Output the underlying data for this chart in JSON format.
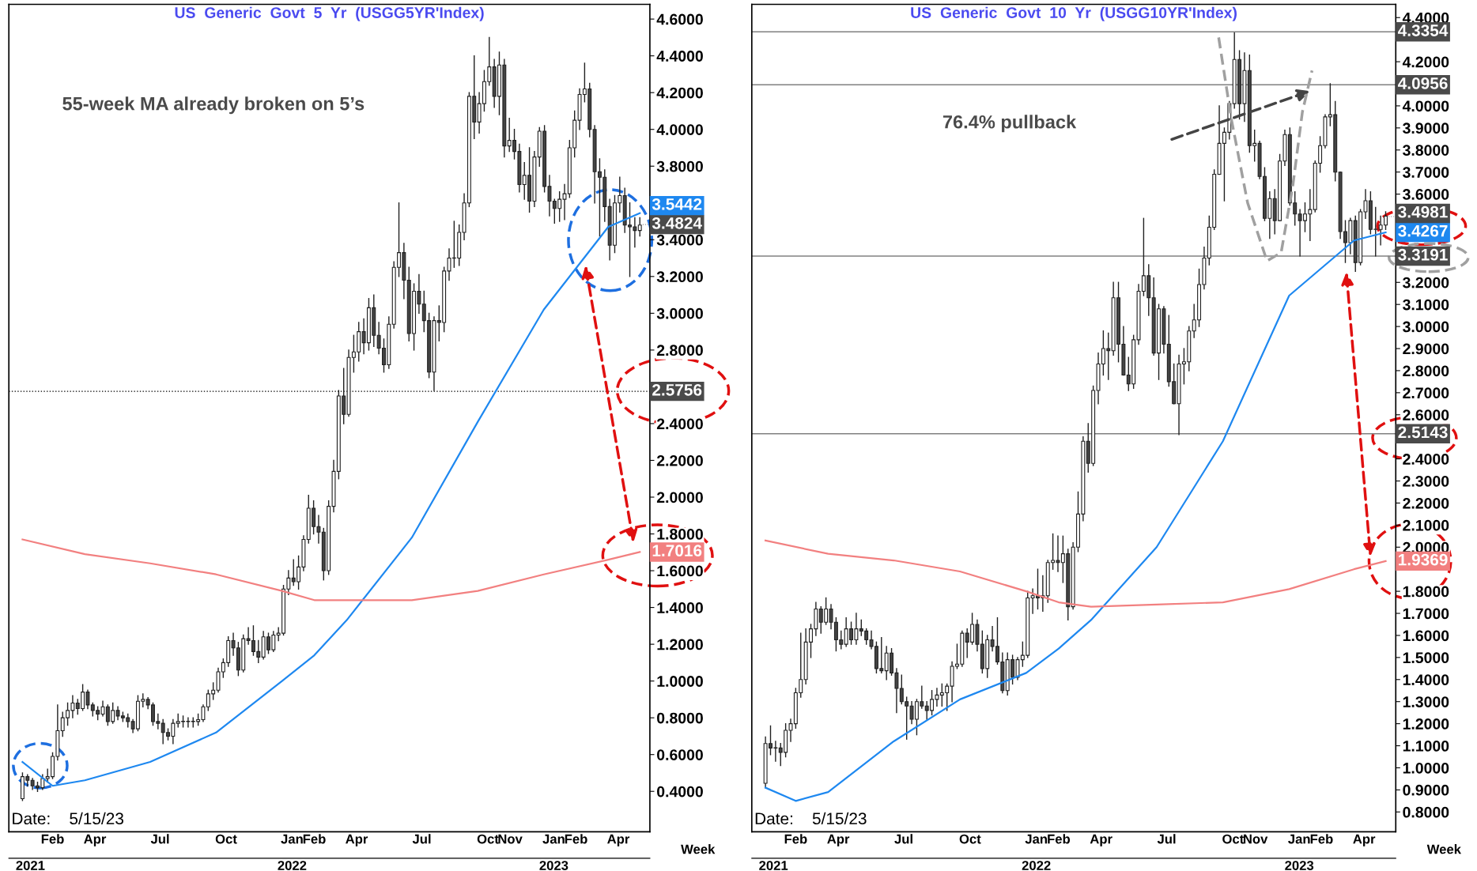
{
  "chart_data": [
    {
      "type": "candlestick",
      "title": "US  Generic  Govt  5  Yr  (USGG5YR'Index)",
      "xlabel": "Week",
      "x": [
        "2021-01-04",
        "2021-01-11",
        "2021-01-18",
        "2021-01-25",
        "2021-02-01",
        "2021-02-08",
        "2021-02-15",
        "2021-02-22",
        "2021-03-01",
        "2021-03-08",
        "2021-03-15",
        "2021-03-22",
        "2021-03-29",
        "2021-04-05",
        "2021-04-12",
        "2021-04-19",
        "2021-04-26",
        "2021-05-03",
        "2021-05-10",
        "2021-05-17",
        "2021-05-24",
        "2021-05-31",
        "2021-06-07",
        "2021-06-14",
        "2021-06-21",
        "2021-06-28",
        "2021-07-05",
        "2021-07-12",
        "2021-07-19",
        "2021-07-26",
        "2021-08-02",
        "2021-08-09",
        "2021-08-16",
        "2021-08-23",
        "2021-08-30",
        "2021-09-06",
        "2021-09-13",
        "2021-09-20",
        "2021-09-27",
        "2021-10-04",
        "2021-10-11",
        "2021-10-18",
        "2021-10-25",
        "2021-11-01",
        "2021-11-08",
        "2021-11-15",
        "2021-11-22",
        "2021-11-29",
        "2021-12-06",
        "2021-12-13",
        "2021-12-20",
        "2021-12-27",
        "2022-01-03",
        "2022-01-10",
        "2022-01-17",
        "2022-01-24",
        "2022-01-31",
        "2022-02-07",
        "2022-02-14",
        "2022-02-21",
        "2022-02-28",
        "2022-03-07",
        "2022-03-14",
        "2022-03-21",
        "2022-03-28",
        "2022-04-04",
        "2022-04-11",
        "2022-04-18",
        "2022-04-25",
        "2022-05-02",
        "2022-05-09",
        "2022-05-16",
        "2022-05-23",
        "2022-05-30",
        "2022-06-06",
        "2022-06-13",
        "2022-06-20",
        "2022-06-27",
        "2022-07-04",
        "2022-07-11",
        "2022-07-18",
        "2022-07-25",
        "2022-08-01",
        "2022-08-08",
        "2022-08-15",
        "2022-08-22",
        "2022-08-29",
        "2022-09-05",
        "2022-09-12",
        "2022-09-19",
        "2022-09-26",
        "2022-10-03",
        "2022-10-10",
        "2022-10-17",
        "2022-10-24",
        "2022-10-31",
        "2022-11-07",
        "2022-11-14",
        "2022-11-21",
        "2022-11-28",
        "2022-12-05",
        "2022-12-12",
        "2022-12-19",
        "2022-12-26",
        "2023-01-02",
        "2023-01-09",
        "2023-01-16",
        "2023-01-23",
        "2023-01-30",
        "2023-02-06",
        "2023-02-13",
        "2023-02-20",
        "2023-02-27",
        "2023-03-06",
        "2023-03-13",
        "2023-03-20",
        "2023-03-27",
        "2023-04-03",
        "2023-04-10",
        "2023-04-17",
        "2023-04-24",
        "2023-05-01",
        "2023-05-08",
        "2023-05-15"
      ],
      "ohlc": [
        [
          0.36,
          0.5,
          0.35,
          0.48
        ],
        [
          0.48,
          0.49,
          0.43,
          0.46
        ],
        [
          0.46,
          0.47,
          0.41,
          0.43
        ],
        [
          0.43,
          0.45,
          0.4,
          0.42
        ],
        [
          0.42,
          0.49,
          0.41,
          0.47
        ],
        [
          0.47,
          0.52,
          0.45,
          0.48
        ],
        [
          0.48,
          0.61,
          0.47,
          0.59
        ],
        [
          0.59,
          0.87,
          0.57,
          0.73
        ],
        [
          0.73,
          0.83,
          0.7,
          0.8
        ],
        [
          0.8,
          0.88,
          0.76,
          0.84
        ],
        [
          0.84,
          0.92,
          0.8,
          0.88
        ],
        [
          0.88,
          0.9,
          0.82,
          0.85
        ],
        [
          0.85,
          0.98,
          0.84,
          0.94
        ],
        [
          0.94,
          0.95,
          0.85,
          0.87
        ],
        [
          0.87,
          0.88,
          0.81,
          0.84
        ],
        [
          0.84,
          0.86,
          0.79,
          0.82
        ],
        [
          0.82,
          0.89,
          0.81,
          0.86
        ],
        [
          0.86,
          0.87,
          0.76,
          0.78
        ],
        [
          0.78,
          0.88,
          0.77,
          0.84
        ],
        [
          0.84,
          0.86,
          0.79,
          0.81
        ],
        [
          0.81,
          0.83,
          0.78,
          0.8
        ],
        [
          0.8,
          0.82,
          0.75,
          0.78
        ],
        [
          0.78,
          0.79,
          0.72,
          0.74
        ],
        [
          0.74,
          0.92,
          0.73,
          0.89
        ],
        [
          0.89,
          0.93,
          0.86,
          0.9
        ],
        [
          0.9,
          0.91,
          0.85,
          0.87
        ],
        [
          0.87,
          0.88,
          0.76,
          0.78
        ],
        [
          0.78,
          0.82,
          0.74,
          0.77
        ],
        [
          0.77,
          0.79,
          0.66,
          0.72
        ],
        [
          0.72,
          0.74,
          0.68,
          0.7
        ],
        [
          0.7,
          0.79,
          0.66,
          0.77
        ],
        [
          0.77,
          0.82,
          0.75,
          0.78
        ],
        [
          0.78,
          0.81,
          0.75,
          0.78
        ],
        [
          0.78,
          0.8,
          0.75,
          0.78
        ],
        [
          0.78,
          0.8,
          0.75,
          0.78
        ],
        [
          0.78,
          0.82,
          0.76,
          0.79
        ],
        [
          0.79,
          0.87,
          0.78,
          0.86
        ],
        [
          0.86,
          0.95,
          0.84,
          0.93
        ],
        [
          0.93,
          0.99,
          0.9,
          0.95
        ],
        [
          0.95,
          1.07,
          0.94,
          1.05
        ],
        [
          1.05,
          1.12,
          1.02,
          1.1
        ],
        [
          1.1,
          1.24,
          1.08,
          1.22
        ],
        [
          1.22,
          1.26,
          1.14,
          1.18
        ],
        [
          1.18,
          1.21,
          1.03,
          1.06
        ],
        [
          1.06,
          1.25,
          1.05,
          1.23
        ],
        [
          1.23,
          1.29,
          1.2,
          1.22
        ],
        [
          1.22,
          1.3,
          1.14,
          1.16
        ],
        [
          1.16,
          1.22,
          1.1,
          1.13
        ],
        [
          1.13,
          1.27,
          1.12,
          1.24
        ],
        [
          1.24,
          1.26,
          1.15,
          1.17
        ],
        [
          1.17,
          1.27,
          1.16,
          1.25
        ],
        [
          1.25,
          1.29,
          1.22,
          1.26
        ],
        [
          1.26,
          1.52,
          1.25,
          1.5
        ],
        [
          1.5,
          1.6,
          1.47,
          1.56
        ],
        [
          1.56,
          1.66,
          1.52,
          1.54
        ],
        [
          1.54,
          1.68,
          1.5,
          1.62
        ],
        [
          1.62,
          1.79,
          1.6,
          1.77
        ],
        [
          1.77,
          2.01,
          1.75,
          1.94
        ],
        [
          1.94,
          1.98,
          1.8,
          1.84
        ],
        [
          1.84,
          1.9,
          1.75,
          1.81
        ],
        [
          1.81,
          1.83,
          1.55,
          1.6
        ],
        [
          1.6,
          1.98,
          1.58,
          1.95
        ],
        [
          1.95,
          2.2,
          1.92,
          2.14
        ],
        [
          2.14,
          2.58,
          2.1,
          2.55
        ],
        [
          2.55,
          2.7,
          2.4,
          2.45
        ],
        [
          2.45,
          2.8,
          2.44,
          2.76
        ],
        [
          2.76,
          2.88,
          2.68,
          2.79
        ],
        [
          2.79,
          2.95,
          2.74,
          2.9
        ],
        [
          2.9,
          2.97,
          2.78,
          2.84
        ],
        [
          2.84,
          3.08,
          2.8,
          3.03
        ],
        [
          3.03,
          3.1,
          2.82,
          2.88
        ],
        [
          2.88,
          2.95,
          2.78,
          2.81
        ],
        [
          2.81,
          2.86,
          2.68,
          2.72
        ],
        [
          2.72,
          2.98,
          2.7,
          2.94
        ],
        [
          2.94,
          3.28,
          2.92,
          3.25
        ],
        [
          3.25,
          3.6,
          3.2,
          3.33
        ],
        [
          3.33,
          3.38,
          3.08,
          3.18
        ],
        [
          3.18,
          3.25,
          2.85,
          2.89
        ],
        [
          2.89,
          3.16,
          2.8,
          3.12
        ],
        [
          3.12,
          3.21,
          3.0,
          3.05
        ],
        [
          3.05,
          3.12,
          2.9,
          2.96
        ],
        [
          2.96,
          3.0,
          2.65,
          2.68
        ],
        [
          2.68,
          2.98,
          2.58,
          2.96
        ],
        [
          2.96,
          3.04,
          2.85,
          2.95
        ],
        [
          2.95,
          3.25,
          2.9,
          3.23
        ],
        [
          3.23,
          3.35,
          3.18,
          3.3
        ],
        [
          3.3,
          3.5,
          3.25,
          3.3
        ],
        [
          3.3,
          3.48,
          3.26,
          3.44
        ],
        [
          3.44,
          3.65,
          3.4,
          3.6
        ],
        [
          3.6,
          4.2,
          3.58,
          4.18
        ],
        [
          4.18,
          4.4,
          3.95,
          4.04
        ],
        [
          4.04,
          4.2,
          3.98,
          4.14
        ],
        [
          4.14,
          4.32,
          4.1,
          4.26
        ],
        [
          4.26,
          4.5,
          4.24,
          4.34
        ],
        [
          4.34,
          4.38,
          4.12,
          4.18
        ],
        [
          4.18,
          4.42,
          4.08,
          4.35
        ],
        [
          4.35,
          4.38,
          3.85,
          3.91
        ],
        [
          3.91,
          4.06,
          3.88,
          3.94
        ],
        [
          3.94,
          4.0,
          3.84,
          3.88
        ],
        [
          3.88,
          3.92,
          3.66,
          3.7
        ],
        [
          3.7,
          3.82,
          3.62,
          3.75
        ],
        [
          3.75,
          3.9,
          3.55,
          3.61
        ],
        [
          3.61,
          3.88,
          3.58,
          3.85
        ],
        [
          3.85,
          4.01,
          3.8,
          3.99
        ],
        [
          3.99,
          4.02,
          3.66,
          3.69
        ],
        [
          3.69,
          3.75,
          3.53,
          3.61
        ],
        [
          3.61,
          3.62,
          3.49,
          3.57
        ],
        [
          3.57,
          3.66,
          3.5,
          3.62
        ],
        [
          3.62,
          3.7,
          3.51,
          3.65
        ],
        [
          3.65,
          3.94,
          3.63,
          3.9
        ],
        [
          3.9,
          4.1,
          3.85,
          4.05
        ],
        [
          4.05,
          4.22,
          4.0,
          4.19
        ],
        [
          4.19,
          4.36,
          4.15,
          4.22
        ],
        [
          4.22,
          4.25,
          3.96,
          4.0
        ],
        [
          4.0,
          4.02,
          3.6,
          3.77
        ],
        [
          3.77,
          3.84,
          3.42,
          3.74
        ],
        [
          3.74,
          3.78,
          3.5,
          3.58
        ],
        [
          3.58,
          3.62,
          3.29,
          3.37
        ],
        [
          3.37,
          3.64,
          3.33,
          3.6
        ],
        [
          3.6,
          3.74,
          3.55,
          3.64
        ],
        [
          3.64,
          3.68,
          3.44,
          3.48
        ],
        [
          3.48,
          3.6,
          3.2,
          3.47
        ],
        [
          3.47,
          3.52,
          3.36,
          3.45
        ],
        [
          3.45,
          3.52,
          3.42,
          3.48
        ]
      ],
      "series": [
        {
          "type": "line",
          "color": "#1e88f0",
          "x": [
            "2021-01-04",
            "2021-02-15",
            "2021-04-01",
            "2021-07-01",
            "2021-10-01",
            "2022-01-01",
            "2022-02-15",
            "2022-04-01",
            "2022-07-01",
            "2022-10-01",
            "2023-01-01",
            "2023-04-01",
            "2023-05-15"
          ],
          "values": [
            0.56,
            0.43,
            0.46,
            0.56,
            0.72,
            1.0,
            1.14,
            1.33,
            1.78,
            2.41,
            3.02,
            3.47,
            3.5442
          ],
          "value_labels": [
            null,
            null,
            null,
            null,
            null,
            null,
            null,
            null,
            null,
            null,
            null,
            null,
            "3.5442"
          ]
        },
        {
          "type": "line",
          "color": "#f28080",
          "x": [
            "2021-01-04",
            "2021-04-01",
            "2021-07-01",
            "2021-10-01",
            "2022-01-01",
            "2022-02-15",
            "2022-04-01",
            "2022-07-01",
            "2022-10-01",
            "2023-01-01",
            "2023-04-01",
            "2023-05-15"
          ],
          "values": [
            1.77,
            1.69,
            1.64,
            1.58,
            1.49,
            1.44,
            1.44,
            1.44,
            1.49,
            1.58,
            1.66,
            1.7016
          ],
          "value_labels": [
            null,
            null,
            null,
            null,
            null,
            null,
            null,
            null,
            null,
            null,
            null,
            "1.7016"
          ]
        }
      ],
      "xlim": [
        "2020-12-16",
        "2023-05-29"
      ],
      "xticks": [
        {
          "value": "2021-02-15",
          "label": "Feb"
        },
        {
          "value": "2021-04-15",
          "label": "Apr"
        },
        {
          "value": "2021-07-15",
          "label": "Jul"
        },
        {
          "value": "2021-10-15",
          "label": "Oct"
        },
        {
          "value": "2022-01-15",
          "label": "Jan"
        },
        {
          "value": "2022-02-15",
          "label": "Feb"
        },
        {
          "value": "2022-04-15",
          "label": "Apr"
        },
        {
          "value": "2022-07-15",
          "label": "Jul"
        },
        {
          "value": "2022-10-15",
          "label": "Oct"
        },
        {
          "value": "2022-11-15",
          "label": "Nov"
        },
        {
          "value": "2023-01-15",
          "label": "Jan"
        },
        {
          "value": "2023-02-15",
          "label": "Feb"
        },
        {
          "value": "2023-04-15",
          "label": "Apr"
        }
      ],
      "x2lim": [
        "2020-12-16",
        "2023-05-29"
      ],
      "x2ticks": [
        {
          "value": "2021-01-15",
          "label": "2021"
        },
        {
          "value": "2022-01-15",
          "label": "2022"
        },
        {
          "value": "2023-01-15",
          "label": "2023"
        }
      ],
      "ylim": [
        0.18,
        4.68
      ],
      "yticks": [
        {
          "value": 0.4,
          "label": "0.4000"
        },
        {
          "value": 0.6,
          "label": "0.6000"
        },
        {
          "value": 0.8,
          "label": "0.8000"
        },
        {
          "value": 1.0,
          "label": "1.0000"
        },
        {
          "value": 1.2,
          "label": "1.2000"
        },
        {
          "value": 1.4,
          "label": "1.4000"
        },
        {
          "value": 1.6,
          "label": "1.6000"
        },
        {
          "value": 1.8,
          "label": "1.8000"
        },
        {
          "value": 2.0,
          "label": "2.0000"
        },
        {
          "value": 2.2,
          "label": "2.2000"
        },
        {
          "value": 2.4,
          "label": "2.4000"
        },
        {
          "value": 2.6,
          "label": null
        },
        {
          "value": 2.8,
          "label": "2.8000"
        },
        {
          "value": 3.0,
          "label": "3.0000"
        },
        {
          "value": 3.2,
          "label": "3.2000"
        },
        {
          "value": 3.4,
          "label": "3.4000"
        },
        {
          "value": 3.6,
          "label": null
        },
        {
          "value": 3.8,
          "label": "3.8000"
        },
        {
          "value": 4.0,
          "label": "4.0000"
        },
        {
          "value": 4.2,
          "label": "4.2000"
        },
        {
          "value": 4.4,
          "label": "4.4000"
        },
        {
          "value": 4.6,
          "label": "4.6000"
        }
      ],
      "ref_lines": [
        {
          "axis": "y",
          "value": 2.5756,
          "label": "2.5756",
          "color": "#000000",
          "line_style": "dotted"
        }
      ],
      "annotations": [
        "55-week MA already broken on 5’s",
        "Date:    5/15/23",
        {
          "text": "3.4824",
          "x": "2023-05-15",
          "y": 3.4824
        }
      ]
    },
    {
      "type": "candlestick",
      "title": "US  Generic  Govt  10  Yr  (USGG10YR'Index)",
      "xlabel": "Week",
      "x": [
        "2021-01-04",
        "2021-01-11",
        "2021-01-18",
        "2021-01-25",
        "2021-02-01",
        "2021-02-08",
        "2021-02-15",
        "2021-02-22",
        "2021-03-01",
        "2021-03-08",
        "2021-03-15",
        "2021-03-22",
        "2021-03-29",
        "2021-04-05",
        "2021-04-12",
        "2021-04-19",
        "2021-04-26",
        "2021-05-03",
        "2021-05-10",
        "2021-05-17",
        "2021-05-24",
        "2021-05-31",
        "2021-06-07",
        "2021-06-14",
        "2021-06-21",
        "2021-06-28",
        "2021-07-05",
        "2021-07-12",
        "2021-07-19",
        "2021-07-26",
        "2021-08-02",
        "2021-08-09",
        "2021-08-16",
        "2021-08-23",
        "2021-08-30",
        "2021-09-06",
        "2021-09-13",
        "2021-09-20",
        "2021-09-27",
        "2021-10-04",
        "2021-10-11",
        "2021-10-18",
        "2021-10-25",
        "2021-11-01",
        "2021-11-08",
        "2021-11-15",
        "2021-11-22",
        "2021-11-29",
        "2021-12-06",
        "2021-12-13",
        "2021-12-20",
        "2021-12-27",
        "2022-01-03",
        "2022-01-10",
        "2022-01-17",
        "2022-01-24",
        "2022-01-31",
        "2022-02-07",
        "2022-02-14",
        "2022-02-21",
        "2022-02-28",
        "2022-03-07",
        "2022-03-14",
        "2022-03-21",
        "2022-03-28",
        "2022-04-04",
        "2022-04-11",
        "2022-04-18",
        "2022-04-25",
        "2022-05-02",
        "2022-05-09",
        "2022-05-16",
        "2022-05-23",
        "2022-05-30",
        "2022-06-06",
        "2022-06-13",
        "2022-06-20",
        "2022-06-27",
        "2022-07-04",
        "2022-07-11",
        "2022-07-18",
        "2022-07-25",
        "2022-08-01",
        "2022-08-08",
        "2022-08-15",
        "2022-08-22",
        "2022-08-29",
        "2022-09-05",
        "2022-09-12",
        "2022-09-19",
        "2022-09-26",
        "2022-10-03",
        "2022-10-10",
        "2022-10-17",
        "2022-10-24",
        "2022-10-31",
        "2022-11-07",
        "2022-11-14",
        "2022-11-21",
        "2022-11-28",
        "2022-12-05",
        "2022-12-12",
        "2022-12-19",
        "2022-12-26",
        "2023-01-02",
        "2023-01-09",
        "2023-01-16",
        "2023-01-23",
        "2023-01-30",
        "2023-02-06",
        "2023-02-13",
        "2023-02-20",
        "2023-02-27",
        "2023-03-06",
        "2023-03-13",
        "2023-03-20",
        "2023-03-27",
        "2023-04-03",
        "2023-04-10",
        "2023-04-17",
        "2023-04-24",
        "2023-05-01",
        "2023-05-08",
        "2023-05-15"
      ],
      "ohlc": [
        [
          0.93,
          1.14,
          0.91,
          1.11
        ],
        [
          1.11,
          1.19,
          1.06,
          1.09
        ],
        [
          1.09,
          1.12,
          1.03,
          1.09
        ],
        [
          1.09,
          1.11,
          1.01,
          1.07
        ],
        [
          1.07,
          1.2,
          1.05,
          1.17
        ],
        [
          1.17,
          1.22,
          1.12,
          1.2
        ],
        [
          1.2,
          1.36,
          1.18,
          1.34
        ],
        [
          1.34,
          1.61,
          1.32,
          1.4
        ],
        [
          1.4,
          1.63,
          1.38,
          1.57
        ],
        [
          1.57,
          1.65,
          1.5,
          1.63
        ],
        [
          1.63,
          1.75,
          1.6,
          1.72
        ],
        [
          1.72,
          1.73,
          1.61,
          1.66
        ],
        [
          1.66,
          1.77,
          1.65,
          1.72
        ],
        [
          1.72,
          1.74,
          1.63,
          1.66
        ],
        [
          1.66,
          1.68,
          1.53,
          1.58
        ],
        [
          1.58,
          1.62,
          1.54,
          1.56
        ],
        [
          1.56,
          1.68,
          1.55,
          1.63
        ],
        [
          1.63,
          1.66,
          1.56,
          1.58
        ],
        [
          1.58,
          1.7,
          1.56,
          1.63
        ],
        [
          1.63,
          1.67,
          1.6,
          1.62
        ],
        [
          1.62,
          1.63,
          1.56,
          1.58
        ],
        [
          1.58,
          1.62,
          1.54,
          1.55
        ],
        [
          1.55,
          1.57,
          1.43,
          1.45
        ],
        [
          1.45,
          1.59,
          1.43,
          1.44
        ],
        [
          1.44,
          1.55,
          1.4,
          1.52
        ],
        [
          1.52,
          1.54,
          1.42,
          1.43
        ],
        [
          1.43,
          1.45,
          1.25,
          1.36
        ],
        [
          1.36,
          1.42,
          1.29,
          1.3
        ],
        [
          1.3,
          1.32,
          1.13,
          1.28
        ],
        [
          1.28,
          1.3,
          1.2,
          1.22
        ],
        [
          1.22,
          1.31,
          1.15,
          1.3
        ],
        [
          1.3,
          1.37,
          1.27,
          1.28
        ],
        [
          1.28,
          1.3,
          1.22,
          1.26
        ],
        [
          1.26,
          1.35,
          1.24,
          1.31
        ],
        [
          1.31,
          1.36,
          1.28,
          1.33
        ],
        [
          1.33,
          1.38,
          1.28,
          1.34
        ],
        [
          1.34,
          1.38,
          1.26,
          1.37
        ],
        [
          1.37,
          1.48,
          1.3,
          1.46
        ],
        [
          1.46,
          1.56,
          1.45,
          1.47
        ],
        [
          1.47,
          1.62,
          1.46,
          1.61
        ],
        [
          1.61,
          1.63,
          1.5,
          1.57
        ],
        [
          1.57,
          1.7,
          1.56,
          1.65
        ],
        [
          1.65,
          1.67,
          1.53,
          1.56
        ],
        [
          1.56,
          1.62,
          1.43,
          1.45
        ],
        [
          1.45,
          1.6,
          1.41,
          1.58
        ],
        [
          1.58,
          1.64,
          1.53,
          1.55
        ],
        [
          1.55,
          1.68,
          1.47,
          1.48
        ],
        [
          1.48,
          1.52,
          1.34,
          1.35
        ],
        [
          1.35,
          1.52,
          1.33,
          1.49
        ],
        [
          1.49,
          1.51,
          1.38,
          1.41
        ],
        [
          1.41,
          1.5,
          1.4,
          1.49
        ],
        [
          1.49,
          1.57,
          1.46,
          1.51
        ],
        [
          1.51,
          1.8,
          1.5,
          1.77
        ],
        [
          1.77,
          1.81,
          1.7,
          1.78
        ],
        [
          1.78,
          1.9,
          1.72,
          1.77
        ],
        [
          1.77,
          1.87,
          1.71,
          1.78
        ],
        [
          1.78,
          1.94,
          1.75,
          1.93
        ],
        [
          1.93,
          2.06,
          1.9,
          1.94
        ],
        [
          1.94,
          2.05,
          1.89,
          1.93
        ],
        [
          1.93,
          2.05,
          1.84,
          1.97
        ],
        [
          1.97,
          1.99,
          1.67,
          1.73
        ],
        [
          1.73,
          2.02,
          1.72,
          2.0
        ],
        [
          2.0,
          2.25,
          1.98,
          2.15
        ],
        [
          2.15,
          2.5,
          2.12,
          2.48
        ],
        [
          2.48,
          2.56,
          2.34,
          2.38
        ],
        [
          2.38,
          2.73,
          2.37,
          2.71
        ],
        [
          2.71,
          2.88,
          2.65,
          2.83
        ],
        [
          2.83,
          2.98,
          2.78,
          2.9
        ],
        [
          2.9,
          2.97,
          2.76,
          2.89
        ],
        [
          2.89,
          3.2,
          2.87,
          3.13
        ],
        [
          3.13,
          3.2,
          2.84,
          2.92
        ],
        [
          2.92,
          3.0,
          2.78,
          2.78
        ],
        [
          2.78,
          2.86,
          2.71,
          2.74
        ],
        [
          2.74,
          2.96,
          2.72,
          2.94
        ],
        [
          2.94,
          3.19,
          2.92,
          3.16
        ],
        [
          3.16,
          3.49,
          3.14,
          3.23
        ],
        [
          3.23,
          3.28,
          3.05,
          3.13
        ],
        [
          3.13,
          3.22,
          2.87,
          2.88
        ],
        [
          2.88,
          3.1,
          2.76,
          3.08
        ],
        [
          3.08,
          3.09,
          2.88,
          2.92
        ],
        [
          2.92,
          3.05,
          2.73,
          2.75
        ],
        [
          2.75,
          2.83,
          2.65,
          2.65
        ],
        [
          2.65,
          2.87,
          2.51,
          2.83
        ],
        [
          2.83,
          2.9,
          2.74,
          2.84
        ],
        [
          2.84,
          3.0,
          2.8,
          2.98
        ],
        [
          2.98,
          3.1,
          2.95,
          3.03
        ],
        [
          3.03,
          3.26,
          3.0,
          3.19
        ],
        [
          3.19,
          3.36,
          3.17,
          3.31
        ],
        [
          3.31,
          3.5,
          3.28,
          3.45
        ],
        [
          3.45,
          3.71,
          3.44,
          3.69
        ],
        [
          3.69,
          4.0,
          3.69,
          3.83
        ],
        [
          3.83,
          3.9,
          3.57,
          3.88
        ],
        [
          3.88,
          4.02,
          3.85,
          4.01
        ],
        [
          4.01,
          4.33,
          3.99,
          4.21
        ],
        [
          4.21,
          4.25,
          3.94,
          4.01
        ],
        [
          4.01,
          4.24,
          3.93,
          4.16
        ],
        [
          4.16,
          4.23,
          3.79,
          3.82
        ],
        [
          3.82,
          3.89,
          3.75,
          3.83
        ],
        [
          3.83,
          3.84,
          3.67,
          3.68
        ],
        [
          3.68,
          3.72,
          3.48,
          3.49
        ],
        [
          3.49,
          3.61,
          3.4,
          3.58
        ],
        [
          3.58,
          3.62,
          3.42,
          3.48
        ],
        [
          3.48,
          3.78,
          3.48,
          3.75
        ],
        [
          3.75,
          3.89,
          3.73,
          3.87
        ],
        [
          3.87,
          3.9,
          3.55,
          3.56
        ],
        [
          3.56,
          3.61,
          3.46,
          3.51
        ],
        [
          3.51,
          3.53,
          3.32,
          3.48
        ],
        [
          3.48,
          3.56,
          3.43,
          3.51
        ],
        [
          3.51,
          3.62,
          3.39,
          3.53
        ],
        [
          3.53,
          3.75,
          3.52,
          3.74
        ],
        [
          3.74,
          3.86,
          3.7,
          3.82
        ],
        [
          3.82,
          3.96,
          3.81,
          3.95
        ],
        [
          3.95,
          4.1,
          3.91,
          3.96
        ],
        [
          3.96,
          4.02,
          3.66,
          3.7
        ],
        [
          3.7,
          3.7,
          3.4,
          3.43
        ],
        [
          3.43,
          3.48,
          3.29,
          3.38
        ],
        [
          3.38,
          3.49,
          3.33,
          3.48
        ],
        [
          3.48,
          3.5,
          3.25,
          3.29
        ],
        [
          3.29,
          3.53,
          3.28,
          3.52
        ],
        [
          3.52,
          3.62,
          3.49,
          3.57
        ],
        [
          3.57,
          3.61,
          3.42,
          3.44
        ],
        [
          3.44,
          3.54,
          3.32,
          3.44
        ],
        [
          3.44,
          3.5,
          3.37,
          3.46
        ],
        [
          3.46,
          3.52,
          3.44,
          3.5
        ]
      ],
      "series": [
        {
          "type": "line",
          "color": "#1e88f0",
          "x": [
            "2021-01-04",
            "2021-02-15",
            "2021-04-01",
            "2021-07-01",
            "2021-10-01",
            "2022-01-01",
            "2022-02-15",
            "2022-04-01",
            "2022-07-01",
            "2022-10-01",
            "2023-01-01",
            "2023-04-01",
            "2023-05-15"
          ],
          "values": [
            0.91,
            0.85,
            0.89,
            1.12,
            1.31,
            1.43,
            1.54,
            1.67,
            2.0,
            2.48,
            3.14,
            3.39,
            3.4267
          ],
          "value_labels": [
            null,
            null,
            null,
            null,
            null,
            null,
            null,
            null,
            null,
            null,
            null,
            null,
            "3.4267"
          ]
        },
        {
          "type": "line",
          "color": "#f28080",
          "x": [
            "2021-01-04",
            "2021-04-01",
            "2021-07-01",
            "2021-10-01",
            "2022-01-01",
            "2022-02-15",
            "2022-04-01",
            "2022-07-01",
            "2022-10-01",
            "2023-01-01",
            "2023-04-01",
            "2023-05-15"
          ],
          "values": [
            2.03,
            1.97,
            1.94,
            1.89,
            1.8,
            1.75,
            1.73,
            1.74,
            1.75,
            1.81,
            1.9,
            1.9369
          ],
          "value_labels": [
            null,
            null,
            null,
            null,
            null,
            null,
            null,
            null,
            null,
            null,
            null,
            "1.9369"
          ]
        }
      ],
      "xlim": [
        "2020-12-16",
        "2023-05-29"
      ],
      "xticks": [
        {
          "value": "2021-02-15",
          "label": "Feb"
        },
        {
          "value": "2021-04-15",
          "label": "Apr"
        },
        {
          "value": "2021-07-15",
          "label": "Jul"
        },
        {
          "value": "2021-10-15",
          "label": "Oct"
        },
        {
          "value": "2022-01-15",
          "label": "Jan"
        },
        {
          "value": "2022-02-15",
          "label": "Feb"
        },
        {
          "value": "2022-04-15",
          "label": "Apr"
        },
        {
          "value": "2022-07-15",
          "label": "Jul"
        },
        {
          "value": "2022-10-15",
          "label": "Oct"
        },
        {
          "value": "2022-11-15",
          "label": "Nov"
        },
        {
          "value": "2023-01-15",
          "label": "Jan"
        },
        {
          "value": "2023-02-15",
          "label": "Feb"
        },
        {
          "value": "2023-04-15",
          "label": "Apr"
        }
      ],
      "x2lim": [
        "2020-12-16",
        "2023-05-29"
      ],
      "x2ticks": [
        {
          "value": "2021-01-15",
          "label": "2021"
        },
        {
          "value": "2022-01-15",
          "label": "2022"
        },
        {
          "value": "2023-01-15",
          "label": "2023"
        }
      ],
      "ylim": [
        0.71,
        4.46
      ],
      "yticks": [
        {
          "value": 0.8,
          "label": "0.8000"
        },
        {
          "value": 0.9,
          "label": "0.9000"
        },
        {
          "value": 1.0,
          "label": "1.0000"
        },
        {
          "value": 1.1,
          "label": "1.1000"
        },
        {
          "value": 1.2,
          "label": "1.2000"
        },
        {
          "value": 1.3,
          "label": "1.3000"
        },
        {
          "value": 1.4,
          "label": "1.4000"
        },
        {
          "value": 1.5,
          "label": "1.5000"
        },
        {
          "value": 1.6,
          "label": "1.6000"
        },
        {
          "value": 1.7,
          "label": "1.7000"
        },
        {
          "value": 1.8,
          "label": "1.8000"
        },
        {
          "value": 1.9,
          "label": null
        },
        {
          "value": 2.0,
          "label": "2.0000"
        },
        {
          "value": 2.1,
          "label": "2.1000"
        },
        {
          "value": 2.2,
          "label": "2.2000"
        },
        {
          "value": 2.3,
          "label": "2.3000"
        },
        {
          "value": 2.4,
          "label": "2.4000"
        },
        {
          "value": 2.5,
          "label": null
        },
        {
          "value": 2.6,
          "label": "2.6000"
        },
        {
          "value": 2.7,
          "label": "2.7000"
        },
        {
          "value": 2.8,
          "label": "2.8000"
        },
        {
          "value": 2.9,
          "label": "2.9000"
        },
        {
          "value": 3.0,
          "label": "3.0000"
        },
        {
          "value": 3.1,
          "label": "3.1000"
        },
        {
          "value": 3.2,
          "label": "3.2000"
        },
        {
          "value": 3.3,
          "label": null
        },
        {
          "value": 3.4,
          "label": null
        },
        {
          "value": 3.5,
          "label": null
        },
        {
          "value": 3.6,
          "label": "3.6000"
        },
        {
          "value": 3.7,
          "label": "3.7000"
        },
        {
          "value": 3.8,
          "label": "3.8000"
        },
        {
          "value": 3.9,
          "label": "3.9000"
        },
        {
          "value": 4.0,
          "label": "4.0000"
        },
        {
          "value": 4.1,
          "label": null
        },
        {
          "value": 4.2,
          "label": "4.2000"
        },
        {
          "value": 4.3,
          "label": null
        },
        {
          "value": 4.4,
          "label": "4.4000"
        }
      ],
      "ref_lines": [
        {
          "axis": "y",
          "value": 4.3354,
          "label": "4.3354",
          "color": "#808080",
          "line_style": "solid"
        },
        {
          "axis": "y",
          "value": 4.0956,
          "label": "4.0956",
          "color": "#808080",
          "line_style": "solid"
        },
        {
          "axis": "y",
          "value": 3.3191,
          "label": "3.3191",
          "color": "#808080",
          "line_style": "solid"
        },
        {
          "axis": "y",
          "value": 2.5143,
          "label": "2.5143",
          "color": "#808080",
          "line_style": "solid"
        }
      ],
      "annotations": [
        "76.4% pullback",
        "Date:    5/15/23",
        {
          "text": "3.4981",
          "x": "2023-05-15",
          "y": 3.4981
        }
      ]
    }
  ]
}
